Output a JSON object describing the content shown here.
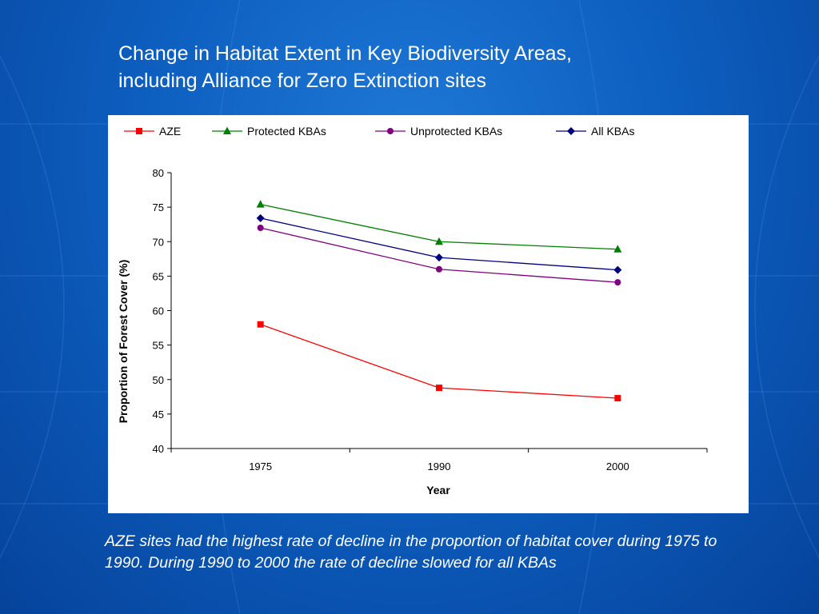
{
  "slide": {
    "title_line1": "Change in Habitat Extent in Key Biodiversity Areas,",
    "title_line2": "including Alliance for Zero Extinction sites",
    "caption": "AZE sites had the highest rate of decline in the proportion of habitat cover during 1975 to 1990. During 1990 to 2000 the rate of decline slowed for all KBAs"
  },
  "chart_data": {
    "type": "line",
    "title": "",
    "xlabel": "Year",
    "ylabel": "Proportion of Forest Cover (%)",
    "categories": [
      "1975",
      "1990",
      "2000"
    ],
    "ylim": [
      40,
      80
    ],
    "yticks": [
      40,
      45,
      50,
      55,
      60,
      65,
      70,
      75,
      80
    ],
    "grid": false,
    "legend_position": "top",
    "series": [
      {
        "name": "AZE",
        "values": [
          58.0,
          48.8,
          47.3
        ],
        "color": "#ff0000",
        "marker": "square"
      },
      {
        "name": "Protected KBAs",
        "values": [
          75.4,
          70.0,
          68.9
        ],
        "color": "#008000",
        "marker": "triangle"
      },
      {
        "name": "Unprotected KBAs",
        "values": [
          72.0,
          66.0,
          64.1
        ],
        "color": "#800080",
        "marker": "circle"
      },
      {
        "name": "All KBAs",
        "values": [
          73.4,
          67.7,
          65.9
        ],
        "color": "#000080",
        "marker": "diamond"
      }
    ]
  }
}
